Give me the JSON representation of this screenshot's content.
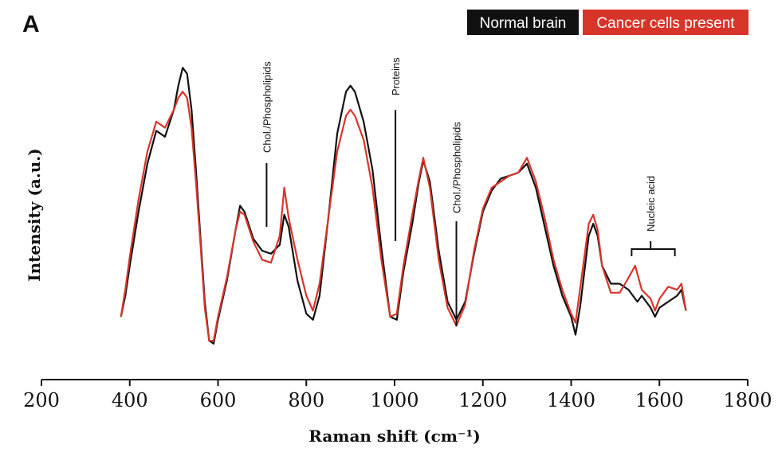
{
  "chart_data": {
    "type": "line",
    "panel_label": "A",
    "xlabel": "Raman shift (cm⁻¹)",
    "ylabel": "Intensity (a.u.)",
    "xlim": [
      200,
      1800
    ],
    "ylim": [
      0,
      100
    ],
    "x_ticks": [
      200,
      400,
      600,
      800,
      1000,
      1200,
      1400,
      1600,
      1800
    ],
    "grid": false,
    "legend_position": "top-right",
    "series": [
      {
        "name": "Normal brain",
        "color": "#111111",
        "points": [
          [
            380,
            13
          ],
          [
            390,
            20
          ],
          [
            400,
            30
          ],
          [
            420,
            48
          ],
          [
            440,
            64
          ],
          [
            460,
            75
          ],
          [
            480,
            73
          ],
          [
            500,
            82
          ],
          [
            510,
            90
          ],
          [
            520,
            96
          ],
          [
            530,
            94
          ],
          [
            540,
            82
          ],
          [
            550,
            62
          ],
          [
            560,
            40
          ],
          [
            570,
            18
          ],
          [
            580,
            5
          ],
          [
            590,
            4
          ],
          [
            600,
            12
          ],
          [
            620,
            25
          ],
          [
            640,
            42
          ],
          [
            650,
            50
          ],
          [
            660,
            48
          ],
          [
            680,
            39
          ],
          [
            700,
            35
          ],
          [
            720,
            34
          ],
          [
            740,
            37
          ],
          [
            750,
            47
          ],
          [
            760,
            43
          ],
          [
            780,
            25
          ],
          [
            800,
            14
          ],
          [
            815,
            12
          ],
          [
            830,
            20
          ],
          [
            850,
            46
          ],
          [
            870,
            74
          ],
          [
            890,
            88
          ],
          [
            900,
            90
          ],
          [
            910,
            88
          ],
          [
            930,
            78
          ],
          [
            950,
            62
          ],
          [
            970,
            36
          ],
          [
            990,
            13
          ],
          [
            1005,
            12
          ],
          [
            1020,
            28
          ],
          [
            1040,
            44
          ],
          [
            1055,
            58
          ],
          [
            1065,
            65
          ],
          [
            1080,
            58
          ],
          [
            1100,
            35
          ],
          [
            1120,
            18
          ],
          [
            1140,
            12
          ],
          [
            1160,
            18
          ],
          [
            1180,
            34
          ],
          [
            1200,
            48
          ],
          [
            1220,
            55
          ],
          [
            1240,
            59
          ],
          [
            1260,
            60
          ],
          [
            1280,
            61
          ],
          [
            1300,
            64
          ],
          [
            1320,
            56
          ],
          [
            1340,
            43
          ],
          [
            1360,
            30
          ],
          [
            1380,
            20
          ],
          [
            1400,
            13
          ],
          [
            1410,
            7
          ],
          [
            1420,
            16
          ],
          [
            1440,
            40
          ],
          [
            1450,
            44
          ],
          [
            1460,
            40
          ],
          [
            1470,
            30
          ],
          [
            1490,
            24
          ],
          [
            1510,
            24
          ],
          [
            1530,
            22
          ],
          [
            1550,
            18
          ],
          [
            1560,
            20
          ],
          [
            1580,
            16
          ],
          [
            1590,
            13
          ],
          [
            1600,
            16
          ],
          [
            1620,
            18
          ],
          [
            1640,
            20
          ],
          [
            1650,
            22
          ],
          [
            1660,
            15
          ]
        ]
      },
      {
        "name": "Cancer cells present",
        "color": "#d8352a",
        "points": [
          [
            380,
            13
          ],
          [
            390,
            22
          ],
          [
            400,
            33
          ],
          [
            420,
            52
          ],
          [
            440,
            68
          ],
          [
            460,
            78
          ],
          [
            480,
            76
          ],
          [
            500,
            82
          ],
          [
            510,
            86
          ],
          [
            520,
            88
          ],
          [
            530,
            86
          ],
          [
            540,
            76
          ],
          [
            550,
            58
          ],
          [
            560,
            38
          ],
          [
            570,
            16
          ],
          [
            580,
            5
          ],
          [
            590,
            5
          ],
          [
            600,
            13
          ],
          [
            620,
            26
          ],
          [
            640,
            42
          ],
          [
            650,
            48
          ],
          [
            660,
            47
          ],
          [
            680,
            38
          ],
          [
            700,
            32
          ],
          [
            720,
            31
          ],
          [
            740,
            40
          ],
          [
            750,
            56
          ],
          [
            760,
            46
          ],
          [
            780,
            32
          ],
          [
            800,
            20
          ],
          [
            815,
            15
          ],
          [
            830,
            24
          ],
          [
            850,
            46
          ],
          [
            870,
            68
          ],
          [
            890,
            80
          ],
          [
            900,
            82
          ],
          [
            910,
            80
          ],
          [
            930,
            72
          ],
          [
            950,
            56
          ],
          [
            970,
            32
          ],
          [
            990,
            13
          ],
          [
            1005,
            14
          ],
          [
            1020,
            30
          ],
          [
            1040,
            47
          ],
          [
            1055,
            59
          ],
          [
            1065,
            66
          ],
          [
            1080,
            56
          ],
          [
            1100,
            32
          ],
          [
            1120,
            16
          ],
          [
            1140,
            10
          ],
          [
            1160,
            17
          ],
          [
            1180,
            35
          ],
          [
            1200,
            49
          ],
          [
            1220,
            56
          ],
          [
            1240,
            58
          ],
          [
            1260,
            60
          ],
          [
            1280,
            61
          ],
          [
            1300,
            66
          ],
          [
            1320,
            58
          ],
          [
            1340,
            46
          ],
          [
            1360,
            32
          ],
          [
            1380,
            22
          ],
          [
            1400,
            14
          ],
          [
            1410,
            11
          ],
          [
            1420,
            22
          ],
          [
            1440,
            44
          ],
          [
            1450,
            47
          ],
          [
            1460,
            42
          ],
          [
            1470,
            30
          ],
          [
            1490,
            21
          ],
          [
            1510,
            21
          ],
          [
            1530,
            26
          ],
          [
            1545,
            30
          ],
          [
            1560,
            22
          ],
          [
            1580,
            19
          ],
          [
            1590,
            15
          ],
          [
            1600,
            19
          ],
          [
            1620,
            23
          ],
          [
            1640,
            22
          ],
          [
            1650,
            24
          ],
          [
            1660,
            15
          ]
        ]
      }
    ],
    "annotations": [
      {
        "text": "Chol./Phospholipids",
        "x": 710
      },
      {
        "text": "Proteins",
        "x": 1002
      },
      {
        "text": "Chol./Phospholipids",
        "x": 1140
      },
      {
        "text": "Nucleic acid",
        "x": 1580
      }
    ]
  }
}
